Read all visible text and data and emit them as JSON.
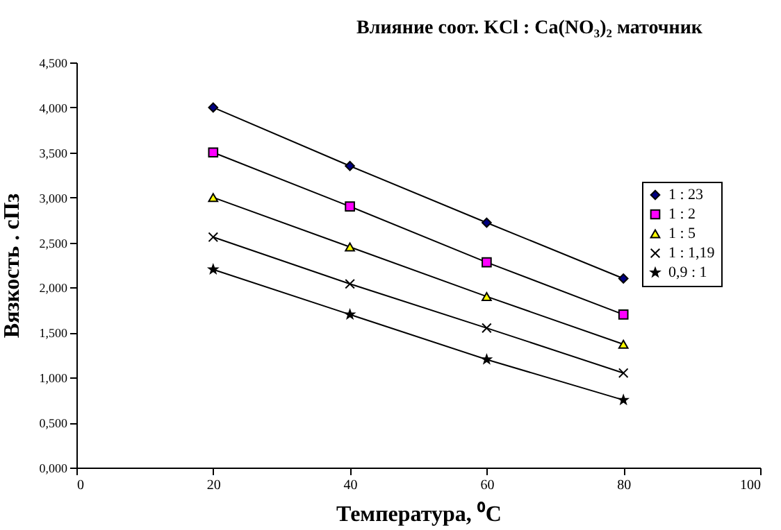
{
  "chart_data": {
    "type": "line",
    "title": "Влияние соот. KCl : Ca(NO₃)₂ маточник",
    "xlabel": "Температура, ⁰C",
    "ylabel": "Вязкость . сПз",
    "x": [
      20,
      40,
      60,
      80
    ],
    "series": [
      {
        "name": "1 : 23",
        "color": "#000080",
        "marker": "diamond",
        "values": [
          4.0,
          3.35,
          2.72,
          2.1
        ]
      },
      {
        "name": "1 : 2",
        "color": "#ff00ff",
        "marker": "square",
        "values": [
          3.5,
          2.9,
          2.28,
          1.7
        ]
      },
      {
        "name": "1 : 5",
        "color": "#ffff00",
        "marker": "triangle",
        "values": [
          3.0,
          2.45,
          1.9,
          1.37
        ]
      },
      {
        "name": "1 : 1,19",
        "color": "#000000",
        "marker": "cross",
        "values": [
          2.56,
          2.04,
          1.55,
          1.05
        ]
      },
      {
        "name": "0,9 : 1",
        "color": "#000000",
        "marker": "star",
        "values": [
          2.2,
          1.7,
          1.2,
          0.75
        ]
      }
    ],
    "xlim": [
      0,
      100
    ],
    "xticks": [
      0,
      20,
      40,
      60,
      80,
      100
    ],
    "ylim": [
      0,
      4.5
    ],
    "yticks": [
      {
        "value": 0,
        "label": "0,000"
      },
      {
        "value": 0.5,
        "label": "0,500"
      },
      {
        "value": 1,
        "label": "1,000"
      },
      {
        "value": 1.5,
        "label": "1,500"
      },
      {
        "value": 2,
        "label": "2,000"
      },
      {
        "value": 2.5,
        "label": "2,500"
      },
      {
        "value": 3,
        "label": "3,000"
      },
      {
        "value": 3.5,
        "label": "3,500"
      },
      {
        "value": 4,
        "label": "4,000"
      },
      {
        "value": 4.5,
        "label": "4,500"
      }
    ],
    "legend": "right",
    "grid": false,
    "line_style": "solid"
  }
}
